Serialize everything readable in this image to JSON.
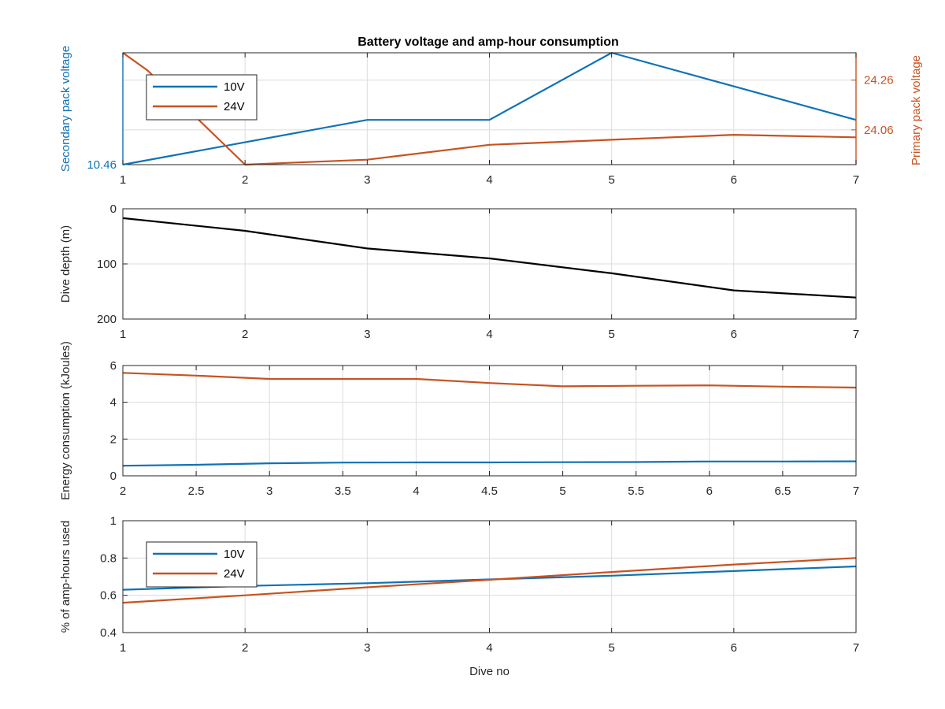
{
  "figure": {
    "title": "Battery voltage and amp-hour consumption"
  },
  "colors": {
    "blue": "#0f72b5",
    "orange": "#c8521f",
    "black": "#000000",
    "axis": "#262626",
    "grid": "#dcdcdc"
  },
  "chart_data": [
    {
      "id": "voltage",
      "type": "line",
      "title": "Battery voltage and amp-hour consumption",
      "xlabel": "",
      "ylabel": "Secondary pack voltage",
      "y2label": "Primary pack voltage",
      "xlim": [
        1,
        7
      ],
      "xticks": [
        1,
        2,
        3,
        4,
        5,
        6,
        7
      ],
      "ylim": [
        10.46,
        10.56
      ],
      "yticks": [
        10.46
      ],
      "yticklabels": [
        "10.46"
      ],
      "y2lim": [
        23.92,
        24.37
      ],
      "y2ticks": [
        24.06,
        24.26
      ],
      "y2ticklabels": [
        "24.06",
        "24.26"
      ],
      "grid": true,
      "legend": {
        "position": "top-left",
        "entries": [
          "10V",
          "24V"
        ]
      },
      "series": [
        {
          "name": "10V",
          "axis": "left",
          "color": "blue",
          "x": [
            1,
            2,
            3,
            4,
            5,
            6,
            7
          ],
          "y": [
            10.46,
            10.48,
            10.5,
            10.5,
            10.56,
            10.53,
            10.5
          ]
        },
        {
          "name": "24V",
          "axis": "right",
          "color": "orange",
          "x": [
            1,
            1.2,
            2,
            2.5,
            3,
            4,
            5,
            6,
            7
          ],
          "y": [
            24.37,
            24.3,
            23.92,
            23.93,
            23.94,
            24.0,
            24.02,
            24.04,
            24.03
          ]
        }
      ]
    },
    {
      "id": "depth",
      "type": "line",
      "xlabel": "",
      "ylabel": "Dive depth (m)",
      "xlim": [
        1,
        7
      ],
      "xticks": [
        1,
        2,
        3,
        4,
        5,
        6,
        7
      ],
      "ylim": [
        0,
        200
      ],
      "yticks": [
        0,
        100,
        200
      ],
      "yticklabels": [
        "0",
        "100",
        "200"
      ],
      "yreverse": true,
      "grid": true,
      "series": [
        {
          "color": "black",
          "x": [
            1,
            2,
            3,
            4,
            5,
            6,
            7
          ],
          "y": [
            17,
            40,
            72,
            90,
            117,
            148,
            161
          ]
        }
      ]
    },
    {
      "id": "energy",
      "type": "line",
      "xlabel": "",
      "ylabel": "Energy consumption (kJoules)",
      "xlim": [
        2,
        7
      ],
      "xticks": [
        2,
        2.5,
        3,
        3.5,
        4,
        4.5,
        5,
        5.5,
        6,
        6.5,
        7
      ],
      "xticklabels": [
        "2",
        "2.5",
        "3",
        "3.5",
        "4",
        "4.5",
        "5",
        "5.5",
        "6",
        "6.5",
        "7"
      ],
      "ylim": [
        0,
        6
      ],
      "yticks": [
        0,
        2,
        4,
        6
      ],
      "yticklabels": [
        "0",
        "2",
        "4",
        "6"
      ],
      "grid": true,
      "series": [
        {
          "color": "orange",
          "x": [
            2,
            2.5,
            3,
            3.5,
            4,
            4.5,
            5,
            5.5,
            6,
            6.5,
            7
          ],
          "y": [
            5.6,
            5.45,
            5.27,
            5.27,
            5.27,
            5.05,
            4.87,
            4.9,
            4.92,
            4.85,
            4.8
          ]
        },
        {
          "color": "blue",
          "x": [
            2,
            2.5,
            3,
            3.5,
            4,
            4.5,
            5,
            5.5,
            6,
            6.5,
            7
          ],
          "y": [
            0.55,
            0.6,
            0.68,
            0.72,
            0.73,
            0.73,
            0.74,
            0.75,
            0.78,
            0.78,
            0.79
          ]
        }
      ]
    },
    {
      "id": "amphours",
      "type": "line",
      "xlabel": "Dive no",
      "ylabel": "% of amp-hours used",
      "xlim": [
        1,
        7
      ],
      "xticks": [
        1,
        2,
        3,
        4,
        5,
        6,
        7
      ],
      "ylim": [
        0.4,
        1
      ],
      "yticks": [
        0.4,
        0.6,
        0.8,
        1
      ],
      "yticklabels": [
        "0.4",
        "0.6",
        "0.8",
        "1"
      ],
      "grid": true,
      "legend": {
        "position": "top-left",
        "entries": [
          "10V",
          "24V"
        ]
      },
      "series": [
        {
          "name": "10V",
          "color": "blue",
          "x": [
            1,
            2,
            3,
            4,
            5,
            6,
            7
          ],
          "y": [
            0.63,
            0.65,
            0.665,
            0.685,
            0.705,
            0.73,
            0.755
          ]
        },
        {
          "name": "24V",
          "color": "orange",
          "x": [
            1,
            2,
            3,
            4,
            5,
            6,
            7
          ],
          "y": [
            0.56,
            0.6,
            0.643,
            0.683,
            0.725,
            0.765,
            0.8
          ]
        }
      ]
    }
  ]
}
